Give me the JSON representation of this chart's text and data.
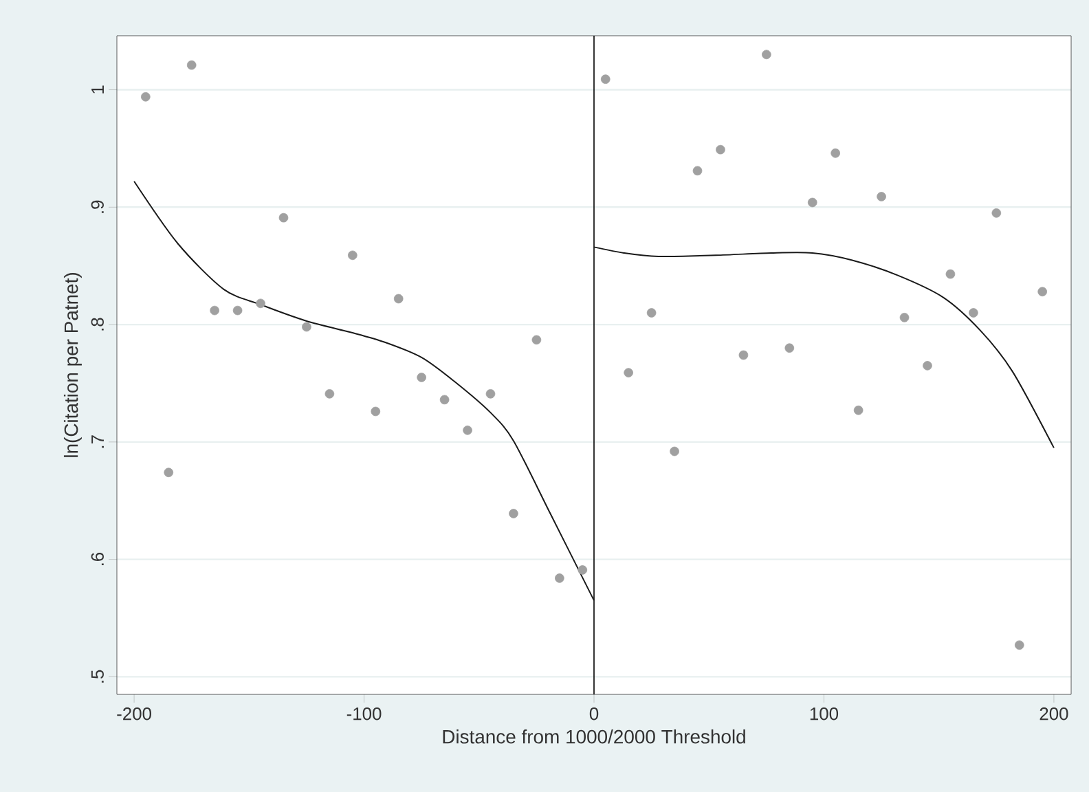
{
  "chart_data": {
    "type": "scatter",
    "xlabel": "Distance from 1000/2000 Threshold",
    "ylabel": "ln(Citation per Patnet)",
    "xlim": [
      -207.5,
      207.5
    ],
    "ylim": [
      0.485,
      1.046
    ],
    "xticks": [
      -200,
      -100,
      0,
      100,
      200
    ],
    "yticks": [
      {
        "value": 0.5,
        "label": ".5"
      },
      {
        "value": 0.6,
        "label": ".6"
      },
      {
        "value": 0.7,
        "label": ".7"
      },
      {
        "value": 0.8,
        "label": ".8"
      },
      {
        "value": 0.9,
        "label": ".9"
      },
      {
        "value": 1,
        "label": "1"
      }
    ],
    "grid": "y",
    "ref_lines": [
      {
        "axis": "x",
        "value": 0,
        "color": "#000000"
      }
    ],
    "series": [
      {
        "marker": "circle",
        "color": "#a0a0a0",
        "x": [
          -195,
          -185,
          -175,
          -165,
          -155,
          -145,
          -135,
          -125,
          -115,
          -105,
          -95,
          -85,
          -75,
          -65,
          -55,
          -45,
          -35,
          -25,
          -15,
          -5
        ],
        "values": [
          0.994,
          0.674,
          1.021,
          0.812,
          0.812,
          0.818,
          0.891,
          0.798,
          0.741,
          0.859,
          0.726,
          0.822,
          0.755,
          0.736,
          0.71,
          0.741,
          0.639,
          0.787,
          0.584,
          0.591
        ]
      },
      {
        "marker": "circle",
        "color": "#a0a0a0",
        "x": [
          5,
          15,
          25,
          35,
          45,
          55,
          65,
          75,
          85,
          95,
          105,
          115,
          125,
          135,
          145,
          155,
          165,
          175,
          185,
          195
        ],
        "values": [
          1.009,
          0.759,
          0.81,
          0.692,
          0.931,
          0.949,
          0.774,
          1.03,
          0.78,
          0.904,
          0.946,
          0.727,
          0.909,
          0.806,
          0.765,
          0.843,
          0.81,
          0.895,
          0.527,
          0.828
        ]
      },
      {
        "type": "line",
        "marker": "none",
        "line_style": "solid",
        "color": "#1a1a1a",
        "x": [
          -200,
          -181,
          -161,
          -145,
          -125,
          -105,
          -91,
          -75,
          -61,
          -45,
          -35,
          -19,
          0
        ],
        "values": [
          0.922,
          0.869,
          0.83,
          0.817,
          0.803,
          0.793,
          0.785,
          0.772,
          0.752,
          0.725,
          0.701,
          0.639,
          0.565
        ]
      },
      {
        "type": "line",
        "marker": "none",
        "line_style": "solid",
        "color": "#1a1a1a",
        "x": [
          0,
          13,
          28,
          53,
          77,
          95,
          112,
          132,
          152,
          168,
          182,
          200
        ],
        "values": [
          0.866,
          0.861,
          0.858,
          0.859,
          0.861,
          0.861,
          0.855,
          0.842,
          0.823,
          0.795,
          0.76,
          0.695
        ]
      }
    ]
  }
}
